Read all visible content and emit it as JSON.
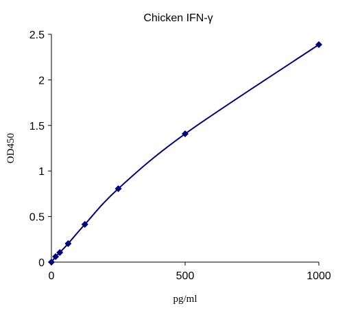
{
  "chart_data": {
    "type": "scatter",
    "title": "Chicken IFN-γ",
    "x_label": "pg/ml",
    "y_label": "OD450",
    "x": [
      0,
      15.6,
      31.25,
      62.5,
      125,
      250,
      500,
      1000
    ],
    "series": [
      {
        "name": "OD450",
        "color": "#000080",
        "values": [
          0,
          0.06,
          0.105,
          0.203,
          0.414,
          0.806,
          1.408,
          2.387
        ]
      }
    ],
    "xlim": [
      0,
      1000
    ],
    "xticks": [
      0,
      500,
      1000
    ],
    "ylim": [
      0,
      2.5
    ],
    "yticks": [
      0,
      0.5,
      1,
      1.5,
      2,
      2.5
    ],
    "grid": false,
    "smooth_line": true
  }
}
